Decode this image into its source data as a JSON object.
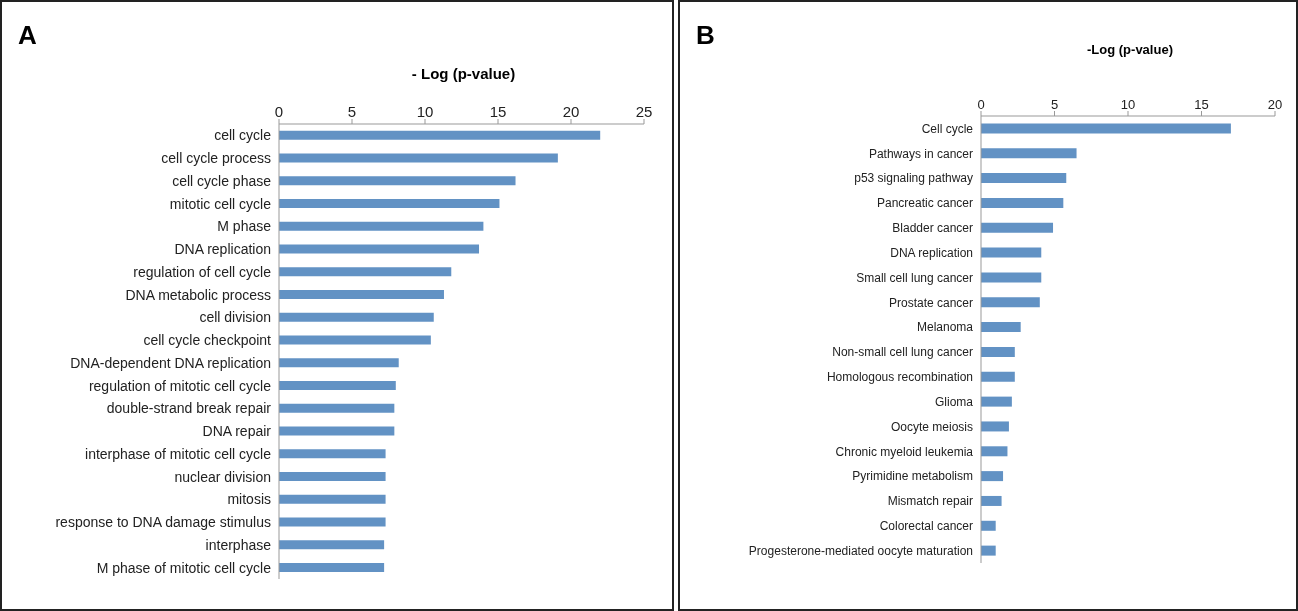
{
  "chart_data": [
    {
      "type": "bar",
      "orientation": "horizontal",
      "title": "A",
      "xlabel": "- Log (p-value)",
      "categories": [
        "cell cycle",
        "cell cycle process",
        "cell cycle phase",
        "mitotic cell cycle",
        "M phase",
        "DNA replication",
        "regulation of cell cycle",
        "DNA metabolic process",
        "cell division",
        "cell cycle checkpoint",
        "DNA-dependent DNA replication",
        "regulation of mitotic cell cycle",
        "double-strand break repair",
        "DNA repair",
        "interphase of mitotic cell cycle",
        "nuclear division",
        "mitosis",
        "response to DNA damage stimulus",
        "interphase",
        "M phase of mitotic cell cycle"
      ],
      "values": [
        22.0,
        19.1,
        16.2,
        15.1,
        14.0,
        13.7,
        11.8,
        11.3,
        10.6,
        10.4,
        8.2,
        8.0,
        7.9,
        7.9,
        7.3,
        7.3,
        7.3,
        7.3,
        7.2,
        7.2
      ],
      "color": "#6292c4",
      "xlim": [
        0,
        25
      ],
      "xticks": [
        0,
        5,
        10,
        15,
        20,
        25
      ],
      "grid": false,
      "legend": false
    },
    {
      "type": "bar",
      "orientation": "horizontal",
      "title": "B",
      "xlabel": "-Log (p-value)",
      "categories": [
        "Cell cycle",
        "Pathways in cancer",
        "p53 signaling pathway",
        "Pancreatic cancer",
        "Bladder cancer",
        "DNA replication",
        "Small cell lung cancer",
        "Prostate cancer",
        "Melanoma",
        "Non-small cell lung cancer",
        "Homologous recombination",
        "Glioma",
        "Oocyte meiosis",
        "Chronic myeloid leukemia",
        "Pyrimidine metabolism",
        "Mismatch repair",
        "Colorectal cancer",
        "Progesterone-mediated oocyte maturation"
      ],
      "values": [
        17.0,
        6.5,
        5.8,
        5.6,
        4.9,
        4.1,
        4.1,
        4.0,
        2.7,
        2.3,
        2.3,
        2.1,
        1.9,
        1.8,
        1.5,
        1.4,
        1.0,
        1.0
      ],
      "color": "#6292c4",
      "xlim": [
        0,
        20
      ],
      "xticks": [
        0,
        5,
        10,
        15,
        20
      ],
      "grid": false,
      "legend": false
    }
  ]
}
